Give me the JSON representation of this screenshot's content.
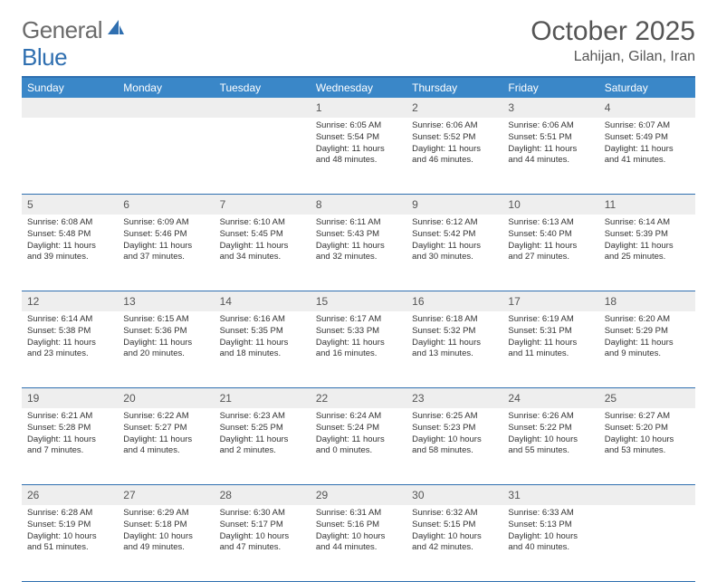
{
  "logo": {
    "text1": "General",
    "text2": "Blue"
  },
  "title": "October 2025",
  "subtitle": "Lahijan, Gilan, Iran",
  "colors": {
    "accent": "#3a87c8",
    "rule": "#2f6fb0",
    "shade": "#eeeeee",
    "text": "#333333",
    "muted": "#555555"
  },
  "weekdays": [
    "Sunday",
    "Monday",
    "Tuesday",
    "Wednesday",
    "Thursday",
    "Friday",
    "Saturday"
  ],
  "weeks": [
    {
      "nums": [
        "",
        "",
        "",
        "1",
        "2",
        "3",
        "4"
      ],
      "cells": [
        null,
        null,
        null,
        {
          "sr": "Sunrise: 6:05 AM",
          "ss": "Sunset: 5:54 PM",
          "d1": "Daylight: 11 hours",
          "d2": "and 48 minutes."
        },
        {
          "sr": "Sunrise: 6:06 AM",
          "ss": "Sunset: 5:52 PM",
          "d1": "Daylight: 11 hours",
          "d2": "and 46 minutes."
        },
        {
          "sr": "Sunrise: 6:06 AM",
          "ss": "Sunset: 5:51 PM",
          "d1": "Daylight: 11 hours",
          "d2": "and 44 minutes."
        },
        {
          "sr": "Sunrise: 6:07 AM",
          "ss": "Sunset: 5:49 PM",
          "d1": "Daylight: 11 hours",
          "d2": "and 41 minutes."
        }
      ]
    },
    {
      "nums": [
        "5",
        "6",
        "7",
        "8",
        "9",
        "10",
        "11"
      ],
      "cells": [
        {
          "sr": "Sunrise: 6:08 AM",
          "ss": "Sunset: 5:48 PM",
          "d1": "Daylight: 11 hours",
          "d2": "and 39 minutes."
        },
        {
          "sr": "Sunrise: 6:09 AM",
          "ss": "Sunset: 5:46 PM",
          "d1": "Daylight: 11 hours",
          "d2": "and 37 minutes."
        },
        {
          "sr": "Sunrise: 6:10 AM",
          "ss": "Sunset: 5:45 PM",
          "d1": "Daylight: 11 hours",
          "d2": "and 34 minutes."
        },
        {
          "sr": "Sunrise: 6:11 AM",
          "ss": "Sunset: 5:43 PM",
          "d1": "Daylight: 11 hours",
          "d2": "and 32 minutes."
        },
        {
          "sr": "Sunrise: 6:12 AM",
          "ss": "Sunset: 5:42 PM",
          "d1": "Daylight: 11 hours",
          "d2": "and 30 minutes."
        },
        {
          "sr": "Sunrise: 6:13 AM",
          "ss": "Sunset: 5:40 PM",
          "d1": "Daylight: 11 hours",
          "d2": "and 27 minutes."
        },
        {
          "sr": "Sunrise: 6:14 AM",
          "ss": "Sunset: 5:39 PM",
          "d1": "Daylight: 11 hours",
          "d2": "and 25 minutes."
        }
      ]
    },
    {
      "nums": [
        "12",
        "13",
        "14",
        "15",
        "16",
        "17",
        "18"
      ],
      "cells": [
        {
          "sr": "Sunrise: 6:14 AM",
          "ss": "Sunset: 5:38 PM",
          "d1": "Daylight: 11 hours",
          "d2": "and 23 minutes."
        },
        {
          "sr": "Sunrise: 6:15 AM",
          "ss": "Sunset: 5:36 PM",
          "d1": "Daylight: 11 hours",
          "d2": "and 20 minutes."
        },
        {
          "sr": "Sunrise: 6:16 AM",
          "ss": "Sunset: 5:35 PM",
          "d1": "Daylight: 11 hours",
          "d2": "and 18 minutes."
        },
        {
          "sr": "Sunrise: 6:17 AM",
          "ss": "Sunset: 5:33 PM",
          "d1": "Daylight: 11 hours",
          "d2": "and 16 minutes."
        },
        {
          "sr": "Sunrise: 6:18 AM",
          "ss": "Sunset: 5:32 PM",
          "d1": "Daylight: 11 hours",
          "d2": "and 13 minutes."
        },
        {
          "sr": "Sunrise: 6:19 AM",
          "ss": "Sunset: 5:31 PM",
          "d1": "Daylight: 11 hours",
          "d2": "and 11 minutes."
        },
        {
          "sr": "Sunrise: 6:20 AM",
          "ss": "Sunset: 5:29 PM",
          "d1": "Daylight: 11 hours",
          "d2": "and 9 minutes."
        }
      ]
    },
    {
      "nums": [
        "19",
        "20",
        "21",
        "22",
        "23",
        "24",
        "25"
      ],
      "cells": [
        {
          "sr": "Sunrise: 6:21 AM",
          "ss": "Sunset: 5:28 PM",
          "d1": "Daylight: 11 hours",
          "d2": "and 7 minutes."
        },
        {
          "sr": "Sunrise: 6:22 AM",
          "ss": "Sunset: 5:27 PM",
          "d1": "Daylight: 11 hours",
          "d2": "and 4 minutes."
        },
        {
          "sr": "Sunrise: 6:23 AM",
          "ss": "Sunset: 5:25 PM",
          "d1": "Daylight: 11 hours",
          "d2": "and 2 minutes."
        },
        {
          "sr": "Sunrise: 6:24 AM",
          "ss": "Sunset: 5:24 PM",
          "d1": "Daylight: 11 hours",
          "d2": "and 0 minutes."
        },
        {
          "sr": "Sunrise: 6:25 AM",
          "ss": "Sunset: 5:23 PM",
          "d1": "Daylight: 10 hours",
          "d2": "and 58 minutes."
        },
        {
          "sr": "Sunrise: 6:26 AM",
          "ss": "Sunset: 5:22 PM",
          "d1": "Daylight: 10 hours",
          "d2": "and 55 minutes."
        },
        {
          "sr": "Sunrise: 6:27 AM",
          "ss": "Sunset: 5:20 PM",
          "d1": "Daylight: 10 hours",
          "d2": "and 53 minutes."
        }
      ]
    },
    {
      "nums": [
        "26",
        "27",
        "28",
        "29",
        "30",
        "31",
        ""
      ],
      "cells": [
        {
          "sr": "Sunrise: 6:28 AM",
          "ss": "Sunset: 5:19 PM",
          "d1": "Daylight: 10 hours",
          "d2": "and 51 minutes."
        },
        {
          "sr": "Sunrise: 6:29 AM",
          "ss": "Sunset: 5:18 PM",
          "d1": "Daylight: 10 hours",
          "d2": "and 49 minutes."
        },
        {
          "sr": "Sunrise: 6:30 AM",
          "ss": "Sunset: 5:17 PM",
          "d1": "Daylight: 10 hours",
          "d2": "and 47 minutes."
        },
        {
          "sr": "Sunrise: 6:31 AM",
          "ss": "Sunset: 5:16 PM",
          "d1": "Daylight: 10 hours",
          "d2": "and 44 minutes."
        },
        {
          "sr": "Sunrise: 6:32 AM",
          "ss": "Sunset: 5:15 PM",
          "d1": "Daylight: 10 hours",
          "d2": "and 42 minutes."
        },
        {
          "sr": "Sunrise: 6:33 AM",
          "ss": "Sunset: 5:13 PM",
          "d1": "Daylight: 10 hours",
          "d2": "and 40 minutes."
        },
        null
      ]
    }
  ]
}
